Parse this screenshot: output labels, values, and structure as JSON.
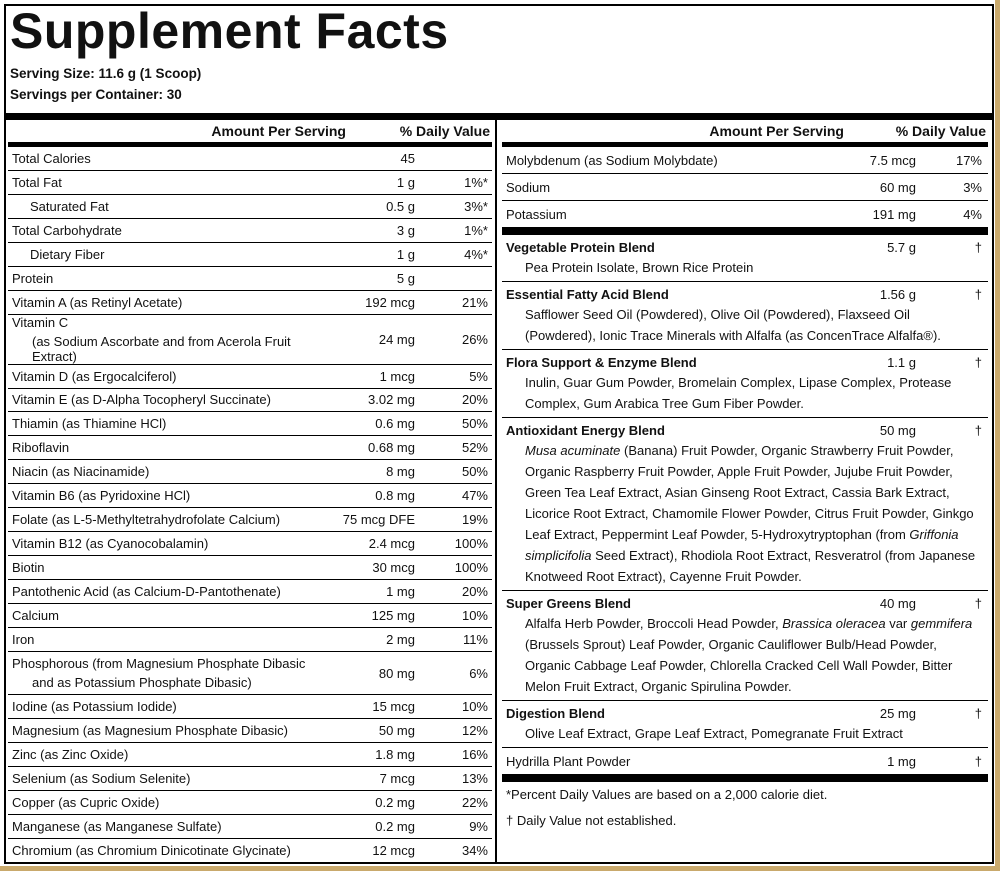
{
  "header": {
    "title": "Supplement Facts",
    "serving_size": "Serving Size: 11.6 g (1 Scoop)",
    "servings_per_container": "Servings per Container: 30"
  },
  "left": {
    "header": {
      "amount": "Amount Per Serving",
      "dv": "% Daily Value"
    },
    "rows": [
      {
        "name": "Total Calories",
        "amount": "45"
      },
      {
        "name": "Total Fat",
        "amount": "1 g",
        "dv": "1%*"
      },
      {
        "name": "Saturated Fat",
        "amount": "0.5 g",
        "dv": "3%*",
        "indent": true
      },
      {
        "name": "Total Carbohydrate",
        "amount": "3 g",
        "dv": "1%*"
      },
      {
        "name": "Dietary Fiber",
        "amount": "1 g",
        "dv": "4%*",
        "indent": true
      },
      {
        "name": "Protein",
        "amount": "5 g"
      },
      {
        "name": "Vitamin A (as Retinyl Acetate)",
        "amount": "192 mcg",
        "dv": "21%"
      },
      {
        "name": "Vitamin C",
        "sub": "(as Sodium Ascorbate and from Acerola Fruit Extract)",
        "amount": "24 mg",
        "dv": "26%"
      },
      {
        "name": "Vitamin D (as Ergocalciferol)",
        "amount": "1 mcg",
        "dv": "5%"
      },
      {
        "name": "Vitamin E (as D-Alpha Tocopheryl Succinate)",
        "amount": "3.02 mg",
        "dv": "20%"
      },
      {
        "name": "Thiamin (as Thiamine HCl)",
        "amount": "0.6 mg",
        "dv": "50%"
      },
      {
        "name": "Riboflavin",
        "amount": "0.68 mg",
        "dv": "52%"
      },
      {
        "name": "Niacin (as Niacinamide)",
        "amount": "8 mg",
        "dv": "50%"
      },
      {
        "name": "Vitamin B6 (as Pyridoxine HCl)",
        "amount": "0.8 mg",
        "dv": "47%"
      },
      {
        "name": "Folate (as L-5-Methyltetrahydrofolate Calcium)",
        "amount": "75 mcg DFE",
        "dv": "19%"
      },
      {
        "name": "Vitamin B12 (as Cyanocobalamin)",
        "amount": "2.4 mcg",
        "dv": "100%"
      },
      {
        "name": "Biotin",
        "amount": "30 mcg",
        "dv": "100%"
      },
      {
        "name": "Pantothenic Acid (as Calcium-D-Pantothenate)",
        "amount": "1 mg",
        "dv": "20%"
      },
      {
        "name": "Calcium",
        "amount": "125 mg",
        "dv": "10%"
      },
      {
        "name": "Iron",
        "amount": "2 mg",
        "dv": "11%"
      },
      {
        "name": "Phosphorous (from Magnesium Phosphate Dibasic",
        "sub": "and as Potassium Phosphate Dibasic)",
        "amount": "80 mg",
        "dv": "6%"
      },
      {
        "name": "Iodine (as Potassium Iodide)",
        "amount": "15 mcg",
        "dv": "10%"
      },
      {
        "name": "Magnesium (as Magnesium Phosphate Dibasic)",
        "amount": "50 mg",
        "dv": "12%"
      },
      {
        "name": "Zinc (as Zinc Oxide)",
        "amount": "1.8 mg",
        "dv": "16%"
      },
      {
        "name": "Selenium (as Sodium Selenite)",
        "amount": "7 mcg",
        "dv": "13%"
      },
      {
        "name": "Copper (as Cupric Oxide)",
        "amount": "0.2 mg",
        "dv": "22%"
      },
      {
        "name": "Manganese (as Manganese Sulfate)",
        "amount": "0.2 mg",
        "dv": "9%"
      },
      {
        "name": "Chromium (as Chromium Dinicotinate Glycinate)",
        "amount": "12 mcg",
        "dv": "34%"
      }
    ]
  },
  "right": {
    "header": {
      "amount": "Amount Per Serving",
      "dv": "% Daily Value"
    },
    "rows": [
      {
        "name": "Molybdenum (as Sodium Molybdate)",
        "amount": "7.5 mcg",
        "dv": "17%"
      },
      {
        "name": "Sodium",
        "amount": "60 mg",
        "dv": "3%"
      },
      {
        "name": "Potassium",
        "amount": "191 mg",
        "dv": "4%"
      }
    ],
    "blends": [
      {
        "name": "Vegetable Protein Blend",
        "amount": "5.7 g",
        "dv": "†",
        "description": [
          {
            "text": "Pea Protein Isolate, Brown Rice Protein"
          }
        ]
      },
      {
        "name": "Essential Fatty Acid Blend",
        "amount": "1.56 g",
        "dv": "†",
        "description": [
          {
            "text": "Safflower Seed Oil (Powdered), Olive Oil (Powdered), Flaxseed Oil (Powdered), Ionic Trace Minerals with Alfalfa (as ConcenTrace Alfalfa®)."
          }
        ]
      },
      {
        "name": "Flora Support & Enzyme Blend",
        "amount": "1.1 g",
        "dv": "†",
        "description": [
          {
            "text": "Inulin, Guar Gum Powder, Bromelain Complex, Lipase Complex, Protease Complex, Gum Arabica Tree Gum Fiber Powder."
          }
        ]
      },
      {
        "name": "Antioxidant Energy Blend",
        "amount": "50 mg",
        "dv": "†",
        "description": [
          {
            "text": "Musa acuminate",
            "italic": true
          },
          {
            "text": " (Banana) Fruit Powder, Organic Strawberry Fruit Powder, Organic Raspberry Fruit Powder, Apple Fruit Powder, Jujube Fruit Powder, Green Tea Leaf Extract, Asian Ginseng Root Extract, Cassia Bark Extract, Licorice Root Extract, Chamomile Flower Powder, Citrus Fruit Powder, Ginkgo Leaf Extract, Peppermint Leaf Powder, 5-Hydroxytryptophan (from "
          },
          {
            "text": "Griffonia simplicifolia",
            "italic": true
          },
          {
            "text": " Seed Extract), Rhodiola Root Extract, Resveratrol (from Japanese Knotweed Root Extract), Cayenne Fruit Powder."
          }
        ]
      },
      {
        "name": "Super Greens Blend",
        "amount": "40 mg",
        "dv": "†",
        "description": [
          {
            "text": "Alfalfa Herb Powder, Broccoli Head Powder, "
          },
          {
            "text": "Brassica oleracea",
            "italic": true
          },
          {
            "text": " var "
          },
          {
            "text": "gemmifera",
            "italic": true
          },
          {
            "text": " (Brussels Sprout) Leaf Powder, Organic Cauliflower Bulb/Head Powder, Organic Cabbage Leaf Powder, Chlorella Cracked Cell Wall Powder, Bitter Melon Fruit Extract, Organic Spirulina Powder."
          }
        ]
      },
      {
        "name": "Digestion Blend",
        "amount": "25 mg",
        "dv": "†",
        "description": [
          {
            "text": "Olive Leaf Extract, Grape Leaf Extract, Pomegranate Fruit Extract"
          }
        ]
      }
    ],
    "final_row": {
      "name": "Hydrilla Plant Powder",
      "amount": "1 mg",
      "dv": "†"
    },
    "footnotes": [
      "*Percent Daily Values are based on a 2,000 calorie diet.",
      "† Daily Value not established."
    ]
  }
}
